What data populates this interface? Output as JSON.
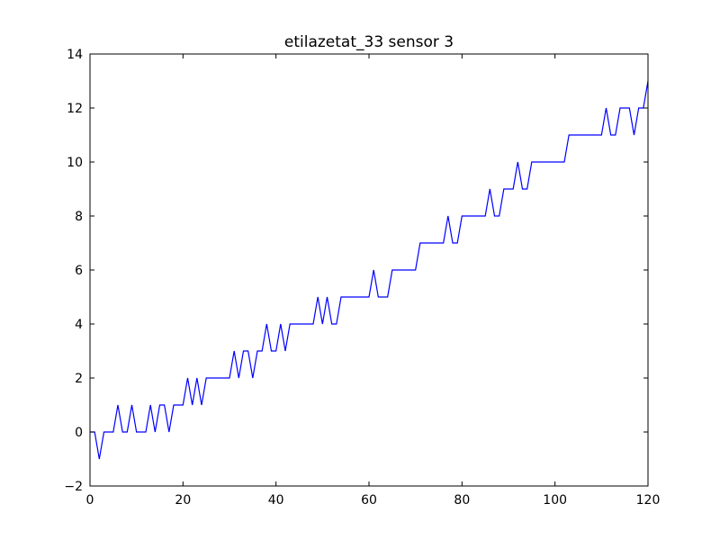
{
  "chart_data": {
    "type": "line",
    "title": "etilazetat_33 sensor 3",
    "xlabel": "",
    "ylabel": "",
    "xlim": [
      0,
      120
    ],
    "ylim": [
      -2,
      14
    ],
    "xticks": [
      0,
      20,
      40,
      60,
      80,
      100,
      120
    ],
    "yticks": [
      -2,
      0,
      2,
      4,
      6,
      8,
      10,
      12,
      14
    ],
    "xtick_labels": [
      "0",
      "20",
      "40",
      "60",
      "80",
      "100",
      "120"
    ],
    "ytick_labels": [
      "−2",
      "0",
      "2",
      "4",
      "6",
      "8",
      "10",
      "12",
      "14"
    ],
    "grid": false,
    "line_color": "#0000ff",
    "series": [
      {
        "x": [
          0,
          1,
          2,
          3,
          4,
          5,
          6,
          7,
          8,
          9,
          10,
          11,
          12,
          13,
          14,
          15,
          16,
          17,
          18,
          19,
          20,
          21,
          22,
          23,
          24,
          25,
          26,
          27,
          28,
          29,
          30,
          31,
          32,
          33,
          34,
          35,
          36,
          37,
          38,
          39,
          40,
          41,
          42,
          43,
          44,
          45,
          46,
          47,
          48,
          49,
          50,
          51,
          52,
          53,
          54,
          55,
          56,
          57,
          58,
          59,
          60,
          61,
          62,
          63,
          64,
          65,
          66,
          67,
          68,
          69,
          70,
          71,
          72,
          73,
          74,
          75,
          76,
          77,
          78,
          79,
          80,
          81,
          82,
          83,
          84,
          85,
          86,
          87,
          88,
          89,
          90,
          91,
          92,
          93,
          94,
          95,
          96,
          97,
          98,
          99,
          100,
          101,
          102,
          103,
          104,
          105,
          106,
          107,
          108,
          109,
          110,
          111,
          112,
          113,
          114,
          115,
          116,
          117,
          118,
          119,
          120
        ],
        "y": [
          0,
          0,
          -1,
          0,
          0,
          0,
          1,
          0,
          0,
          1,
          0,
          0,
          0,
          1,
          0,
          1,
          1,
          0,
          1,
          1,
          1,
          2,
          1,
          2,
          1,
          2,
          2,
          2,
          2,
          2,
          2,
          3,
          2,
          3,
          3,
          2,
          3,
          3,
          4,
          3,
          3,
          4,
          3,
          4,
          4,
          4,
          4,
          4,
          4,
          5,
          4,
          5,
          4,
          4,
          5,
          5,
          5,
          5,
          5,
          5,
          5,
          6,
          5,
          5,
          5,
          6,
          6,
          6,
          6,
          6,
          6,
          7,
          7,
          7,
          7,
          7,
          7,
          8,
          7,
          7,
          8,
          8,
          8,
          8,
          8,
          8,
          9,
          8,
          8,
          9,
          9,
          9,
          10,
          9,
          9,
          10,
          10,
          10,
          10,
          10,
          10,
          10,
          10,
          11,
          11,
          11,
          11,
          11,
          11,
          11,
          11,
          12,
          11,
          11,
          12,
          12,
          12,
          11,
          12,
          12,
          13
        ]
      }
    ]
  }
}
